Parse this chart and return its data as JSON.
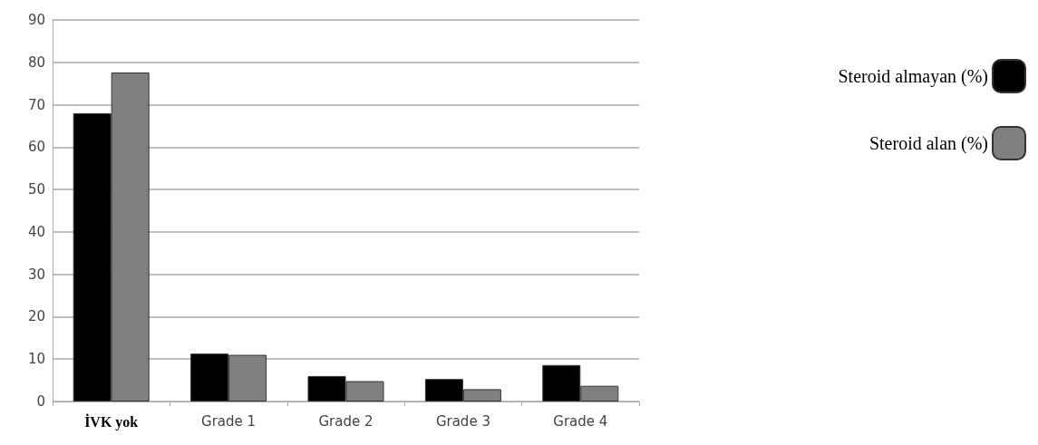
{
  "chart_data": {
    "type": "bar",
    "categories": [
      "İVK yok",
      "Grade 1",
      "Grade 2",
      "Grade 3",
      "Grade 4"
    ],
    "series": [
      {
        "name": "Steroid almayan (%)",
        "color": "#000000",
        "values": [
          68.0,
          11.3,
          6.0,
          5.3,
          8.6
        ]
      },
      {
        "name": "Steroid alan (%)",
        "color": "#808080",
        "values": [
          77.6,
          11.0,
          4.8,
          2.9,
          3.7
        ]
      }
    ],
    "ylim": [
      0,
      90
    ],
    "yticks": [
      0,
      10,
      20,
      30,
      40,
      50,
      60,
      70,
      80,
      90
    ],
    "grid": "y",
    "legend": "right"
  }
}
